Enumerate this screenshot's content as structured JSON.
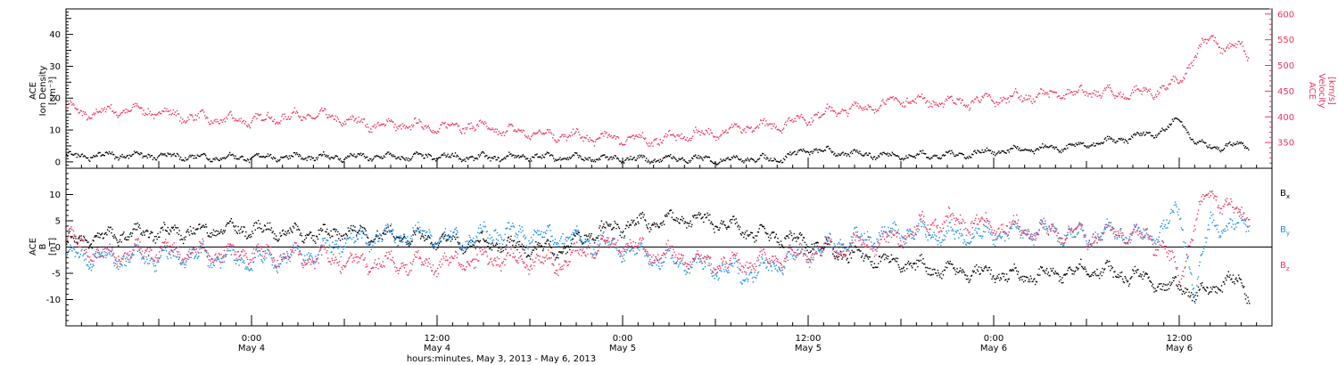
{
  "colors": {
    "black": "#000000",
    "pink": "#e8365e",
    "blue": "#1b8fe6"
  },
  "chart_data": [
    {
      "type": "scatter",
      "panel": "plasma",
      "ylabel_left": [
        "ACE",
        "Ion Density",
        "[cm⁻³]"
      ],
      "ylabel_right": [
        "ACE",
        "Velocity",
        "[km/s]"
      ],
      "xlim_hours": [
        0,
        78
      ],
      "ylim_left": [
        -2,
        48
      ],
      "yticks_left": [
        0,
        10,
        20,
        30,
        40
      ],
      "ylim_right": [
        300,
        610
      ],
      "yticks_right": [
        350,
        400,
        450,
        500,
        550,
        600
      ],
      "grid": false,
      "series": [
        {
          "color": "black",
          "axis": "left",
          "x": [
            0,
            2,
            4,
            6,
            8,
            10,
            12,
            14,
            16,
            18,
            20,
            22,
            24,
            26,
            28,
            30,
            32,
            34,
            36,
            38,
            40,
            42,
            44,
            46,
            48,
            50,
            52,
            54,
            56,
            58,
            60,
            62,
            64,
            66,
            68,
            70,
            71,
            72,
            73,
            74,
            75,
            76,
            76.5
          ],
          "y": [
            2,
            2.2,
            2.3,
            2,
            1.8,
            1.5,
            1.6,
            1.8,
            1.6,
            1.7,
            1.8,
            1.7,
            1.9,
            1.5,
            1.6,
            1.8,
            1.7,
            1.2,
            1.1,
            1,
            1.2,
            0.8,
            1.2,
            1,
            4,
            3,
            2.5,
            2,
            2.2,
            2.5,
            3.5,
            4,
            4.5,
            5.5,
            7,
            9,
            10,
            14,
            6,
            5,
            5,
            6,
            5
          ]
        },
        {
          "color": "pink",
          "axis": "right",
          "x": [
            0,
            1,
            2,
            4,
            6,
            8,
            10,
            12,
            14,
            16,
            18,
            20,
            22,
            24,
            26,
            28,
            30,
            32,
            34,
            36,
            38,
            40,
            42,
            44,
            46,
            48,
            50,
            52,
            54,
            56,
            58,
            60,
            62,
            64,
            66,
            68,
            70,
            71,
            72,
            73,
            74,
            75,
            76,
            76.5
          ],
          "y": [
            425,
            405,
            410,
            415,
            410,
            400,
            395,
            395,
            400,
            405,
            395,
            385,
            385,
            380,
            385,
            375,
            370,
            365,
            360,
            360,
            355,
            365,
            370,
            380,
            385,
            400,
            415,
            420,
            435,
            430,
            430,
            435,
            440,
            445,
            450,
            445,
            450,
            455,
            470,
            520,
            560,
            530,
            540,
            520
          ]
        }
      ]
    },
    {
      "type": "scatter",
      "panel": "magnetic",
      "ylabel_left": [
        "ACE",
        "B",
        "[nT]"
      ],
      "xlim_hours": [
        0,
        78
      ],
      "ylim": [
        -15,
        15
      ],
      "yticks": [
        -10,
        -5,
        0,
        5,
        10
      ],
      "zero_line": true,
      "grid": false,
      "x_tick_labels": [
        {
          "time": "0:00",
          "day": "May 4"
        },
        {
          "time": "12:00",
          "day": "May 4"
        },
        {
          "time": "0:00",
          "day": "May 5"
        },
        {
          "time": "12:00",
          "day": "May 5"
        },
        {
          "time": "0:00",
          "day": "May 6"
        },
        {
          "time": "12:00",
          "day": "May 6"
        }
      ],
      "xlabel": "hours:minutes, May  3, 2013 - May  6, 2013",
      "legend": [
        {
          "label": "B",
          "sub": "x",
          "color": "black"
        },
        {
          "label": "B",
          "sub": "y",
          "color": "blue"
        },
        {
          "label": "B",
          "sub": "z",
          "color": "pink"
        }
      ],
      "series": [
        {
          "name": "Bx",
          "color": "black",
          "x": [
            0,
            2,
            4,
            6,
            8,
            10,
            12,
            14,
            16,
            18,
            20,
            22,
            24,
            26,
            28,
            30,
            32,
            34,
            36,
            38,
            40,
            42,
            44,
            46,
            48,
            50,
            52,
            54,
            56,
            58,
            60,
            62,
            64,
            66,
            68,
            70,
            71,
            72,
            73,
            74,
            75,
            76,
            76.5
          ],
          "y": [
            1,
            2,
            2.5,
            3,
            3,
            3.5,
            3.5,
            3,
            2.5,
            3,
            2.5,
            2,
            1.5,
            1,
            0.5,
            0,
            -0.5,
            3,
            4,
            5,
            5.5,
            5,
            3,
            2,
            1,
            -1,
            -2,
            -3,
            -4,
            -4.5,
            -5,
            -5.5,
            -5,
            -4,
            -5,
            -6,
            -8,
            -7,
            -9,
            -8,
            -6,
            -7,
            -9
          ]
        },
        {
          "name": "By",
          "color": "blue",
          "x": [
            0,
            2,
            4,
            6,
            8,
            10,
            12,
            14,
            16,
            18,
            20,
            22,
            24,
            26,
            28,
            30,
            32,
            34,
            36,
            38,
            40,
            42,
            44,
            46,
            48,
            50,
            52,
            54,
            56,
            58,
            60,
            62,
            64,
            66,
            68,
            70,
            71,
            72,
            73,
            74,
            75,
            76,
            76.5
          ],
          "y": [
            -1,
            -2,
            -2,
            -2,
            -1.5,
            -2,
            -2.5,
            -2,
            -1,
            1,
            2,
            2.5,
            2,
            1.5,
            3,
            2.5,
            2,
            1,
            0,
            -2,
            -3,
            -4,
            -5,
            -3,
            -1,
            1,
            2,
            3,
            2.5,
            2,
            2.5,
            3,
            3,
            2,
            3,
            2,
            4,
            7,
            -9,
            6,
            3,
            5,
            6
          ]
        },
        {
          "name": "Bz",
          "color": "pink",
          "x": [
            0,
            2,
            4,
            6,
            8,
            10,
            12,
            14,
            16,
            18,
            20,
            22,
            24,
            26,
            28,
            30,
            32,
            34,
            36,
            38,
            40,
            42,
            44,
            46,
            48,
            50,
            52,
            54,
            56,
            58,
            60,
            62,
            64,
            66,
            68,
            70,
            71,
            72,
            73,
            74,
            75,
            76,
            76.5
          ],
          "y": [
            2,
            -1.5,
            -1,
            -0.5,
            -1,
            -1,
            -1,
            -1.5,
            -2,
            -2.5,
            -3,
            -3,
            -3,
            -2.5,
            -2,
            -2.5,
            -3,
            0,
            1,
            -1,
            -2,
            -3,
            -3,
            -2,
            -1,
            0,
            1,
            2,
            5,
            5,
            4,
            3.5,
            3,
            2,
            3,
            2,
            0,
            -6,
            5,
            11,
            8,
            6,
            7
          ]
        }
      ]
    }
  ]
}
